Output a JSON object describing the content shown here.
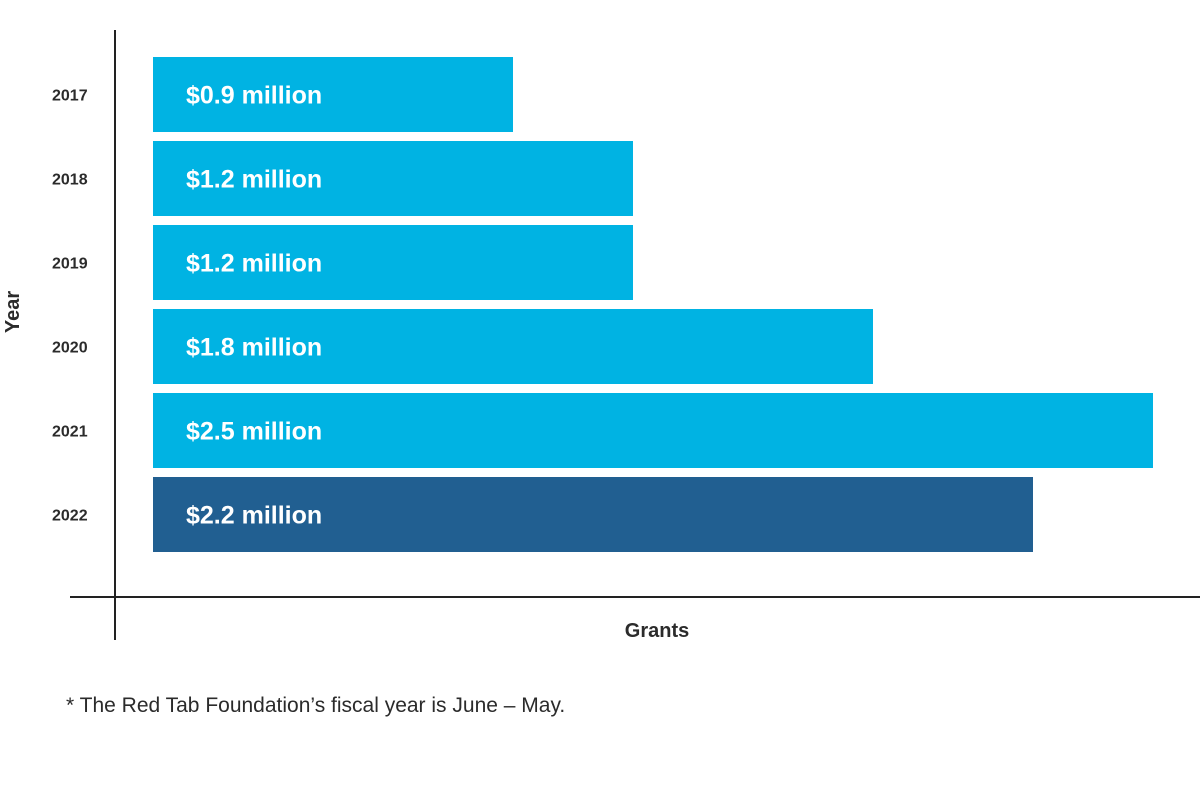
{
  "chart_data": {
    "type": "bar",
    "orientation": "horizontal",
    "categories": [
      "2017",
      "2018",
      "2019",
      "2020",
      "2021",
      "2022"
    ],
    "values": [
      0.9,
      1.2,
      1.2,
      1.8,
      2.5,
      2.2
    ],
    "data_labels": [
      "$0.9 million",
      "$1.2 million",
      "$1.2 million",
      "$1.8 million",
      "$2.5 million",
      "$2.2 million"
    ],
    "title": "",
    "xlabel": "Grants",
    "ylabel": "Year",
    "xlim": [
      0,
      2.55
    ],
    "grid": false,
    "legend": "none",
    "colors": {
      "default_bar": "#00b3e3",
      "highlight_bar": "#215f91",
      "label_text": "#ffffff",
      "axis": "#222222",
      "tick_text": "#2b2b2b"
    },
    "highlight_category": "2022"
  },
  "footnote": "* The Red Tab Foundation’s fiscal year is June – May."
}
